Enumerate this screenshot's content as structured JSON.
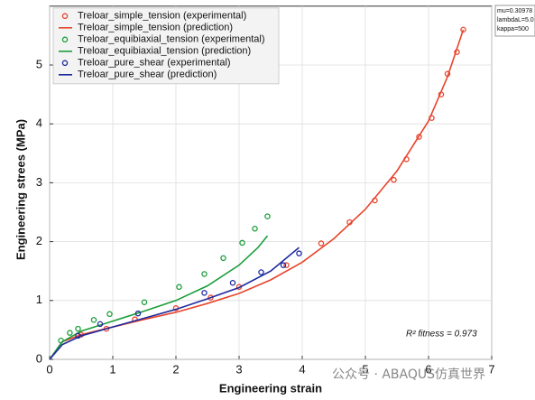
{
  "chart_data": {
    "type": "scatter",
    "x_label": "Engineering strain",
    "y_label": "Engineering strees (MPa)",
    "xlim": [
      0,
      7
    ],
    "ylim": [
      0,
      6
    ],
    "xticks": [
      0,
      1,
      2,
      3,
      4,
      5,
      6,
      7
    ],
    "yticks": [
      0,
      1,
      2,
      3,
      4,
      5
    ],
    "grid": true,
    "legend": "upper left",
    "annotation": "R² fitness  = 0.973",
    "parameters": [
      "mu=0.30978",
      "lambdaL=5.0",
      "kappa=500"
    ],
    "watermark": "公众号 · ABAQUS仿真世界",
    "series": [
      {
        "name": "Treloar_simple_tension (experimental)",
        "mode": "markers",
        "color": "#e8452c",
        "x": [
          0.5,
          0.9,
          1.35,
          2.0,
          2.55,
          3.0,
          3.75,
          4.3,
          4.75,
          5.15,
          5.45,
          5.65,
          5.85,
          6.05,
          6.2,
          6.3,
          6.45,
          6.55
        ],
        "values": [
          0.42,
          0.52,
          0.68,
          0.87,
          1.05,
          1.23,
          1.6,
          1.97,
          2.33,
          2.7,
          3.05,
          3.4,
          3.78,
          4.1,
          4.5,
          4.85,
          5.22,
          5.6
        ]
      },
      {
        "name": "Treloar_simple_tension (prediction)",
        "mode": "lines",
        "color": "#e8452c",
        "x": [
          0,
          0.2,
          0.5,
          1,
          1.5,
          2,
          2.5,
          3,
          3.5,
          4,
          4.5,
          5,
          5.5,
          6,
          6.3,
          6.55
        ],
        "values": [
          0,
          0.3,
          0.42,
          0.55,
          0.68,
          0.8,
          0.95,
          1.12,
          1.35,
          1.65,
          2.05,
          2.55,
          3.2,
          4.05,
          4.8,
          5.6
        ]
      },
      {
        "name": "Treloar_equibiaxial_tension (experimental)",
        "mode": "markers",
        "color": "#1a9e3a",
        "x": [
          0.18,
          0.32,
          0.45,
          0.7,
          0.95,
          1.5,
          2.05,
          2.45,
          2.75,
          3.05,
          3.25,
          3.45
        ],
        "values": [
          0.32,
          0.45,
          0.52,
          0.67,
          0.77,
          0.97,
          1.23,
          1.45,
          1.72,
          1.98,
          2.22,
          2.43
        ]
      },
      {
        "name": "Treloar_equibiaxial_tension (prediction)",
        "mode": "lines",
        "color": "#1a9e3a",
        "x": [
          0,
          0.2,
          0.5,
          1,
          1.5,
          2,
          2.5,
          3,
          3.3,
          3.45
        ],
        "values": [
          0,
          0.3,
          0.48,
          0.65,
          0.82,
          1.0,
          1.25,
          1.6,
          1.9,
          2.1
        ]
      },
      {
        "name": "Treloar_pure_shear (experimental)",
        "mode": "markers",
        "color": "#1f2a9e",
        "x": [
          0.45,
          0.8,
          1.4,
          2.45,
          2.9,
          3.35,
          3.7,
          3.95
        ],
        "values": [
          0.4,
          0.6,
          0.78,
          1.13,
          1.3,
          1.48,
          1.6,
          1.8
        ]
      },
      {
        "name": "Treloar_pure_shear (prediction)",
        "mode": "lines",
        "color": "#1f2a9e",
        "x": [
          0,
          0.2,
          0.5,
          1,
          1.5,
          2,
          2.5,
          3,
          3.5,
          3.95
        ],
        "values": [
          0,
          0.25,
          0.4,
          0.55,
          0.7,
          0.85,
          1.03,
          1.22,
          1.5,
          1.9
        ]
      }
    ]
  }
}
